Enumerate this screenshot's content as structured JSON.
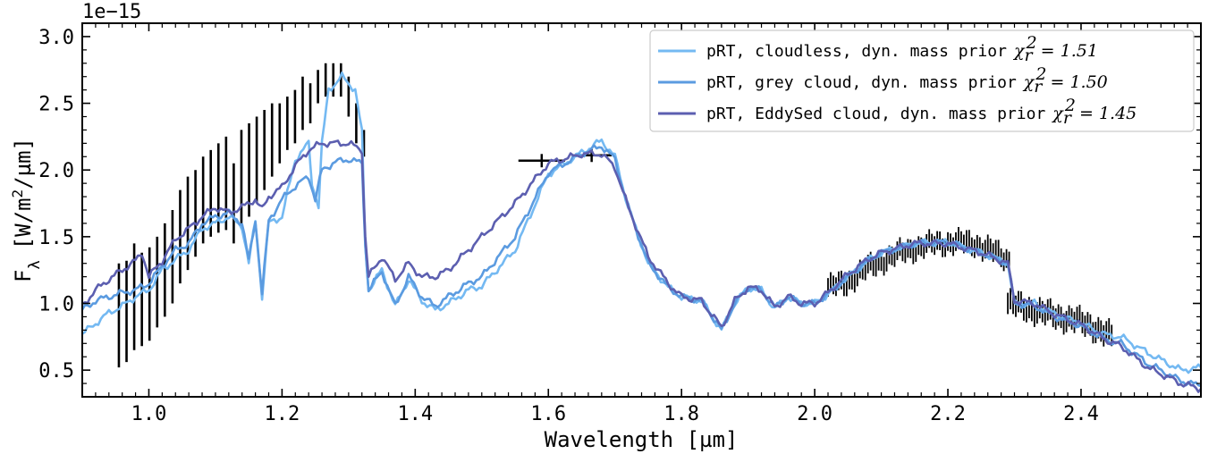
{
  "chart_data": {
    "type": "line",
    "title": "",
    "offset_text": "1e−15",
    "xlabel": "Wavelength [µm]",
    "ylabel_main": "F",
    "ylabel_sub": "λ",
    "ylabel_unit_a": "[W/m",
    "ylabel_sup": "2",
    "ylabel_unit_b": "/µm]",
    "xlim": [
      0.9,
      2.58
    ],
    "ylim": [
      0.3,
      3.1
    ],
    "xticks": [
      1.0,
      1.2,
      1.4,
      1.6,
      1.8,
      2.0,
      2.2,
      2.4
    ],
    "xtick_labels": [
      "1.0",
      "1.2",
      "1.4",
      "1.6",
      "1.8",
      "2.0",
      "2.2",
      "2.4"
    ],
    "yticks": [
      0.5,
      1.0,
      1.5,
      2.0,
      2.5,
      3.0
    ],
    "ytick_labels": [
      "0.5",
      "1.0",
      "1.5",
      "2.0",
      "2.5",
      "3.0"
    ],
    "grid": false,
    "legend_position": "top-right",
    "series": [
      {
        "name": "pRT, cloudless, dyn. mass prior",
        "chi_label": "χ",
        "chi_sub": "r",
        "chi_sup": "2",
        "chi_value": "= 1.51",
        "color": "#74b9f2",
        "points": [
          [
            0.9,
            0.77
          ],
          [
            0.92,
            0.85
          ],
          [
            0.94,
            0.93
          ],
          [
            0.96,
            0.98
          ],
          [
            0.98,
            1.05
          ],
          [
            1.0,
            1.1
          ],
          [
            1.02,
            1.25
          ],
          [
            1.04,
            1.33
          ],
          [
            1.06,
            1.4
          ],
          [
            1.08,
            1.56
          ],
          [
            1.1,
            1.6
          ],
          [
            1.12,
            1.65
          ],
          [
            1.14,
            1.58
          ],
          [
            1.15,
            1.3
          ],
          [
            1.16,
            1.62
          ],
          [
            1.17,
            1.05
          ],
          [
            1.18,
            1.6
          ],
          [
            1.2,
            1.65
          ],
          [
            1.22,
            2.08
          ],
          [
            1.24,
            2.2
          ],
          [
            1.245,
            1.9
          ],
          [
            1.255,
            1.73
          ],
          [
            1.26,
            2.2
          ],
          [
            1.27,
            2.6
          ],
          [
            1.29,
            2.7
          ],
          [
            1.31,
            2.6
          ],
          [
            1.32,
            2.28
          ],
          [
            1.325,
            1.45
          ],
          [
            1.33,
            1.1
          ],
          [
            1.35,
            1.25
          ],
          [
            1.37,
            0.98
          ],
          [
            1.39,
            1.18
          ],
          [
            1.41,
            1.02
          ],
          [
            1.43,
            0.95
          ],
          [
            1.45,
            1.0
          ],
          [
            1.48,
            1.1
          ],
          [
            1.5,
            1.13
          ],
          [
            1.55,
            1.4
          ],
          [
            1.6,
            1.97
          ],
          [
            1.65,
            2.13
          ],
          [
            1.68,
            2.22
          ],
          [
            1.7,
            2.1
          ],
          [
            1.72,
            1.72
          ],
          [
            1.75,
            1.3
          ],
          [
            1.78,
            1.12
          ],
          [
            1.8,
            1.05
          ],
          [
            1.83,
            1.02
          ],
          [
            1.86,
            0.8
          ],
          [
            1.88,
            1.0
          ],
          [
            1.9,
            1.12
          ],
          [
            1.92,
            1.1
          ],
          [
            1.94,
            0.96
          ],
          [
            1.96,
            1.05
          ],
          [
            1.98,
            1.0
          ],
          [
            2.0,
            1.0
          ],
          [
            2.02,
            1.07
          ],
          [
            2.05,
            1.2
          ],
          [
            2.08,
            1.32
          ],
          [
            2.1,
            1.38
          ],
          [
            2.15,
            1.45
          ],
          [
            2.2,
            1.46
          ],
          [
            2.25,
            1.38
          ],
          [
            2.29,
            1.3
          ],
          [
            2.3,
            1.0
          ],
          [
            2.33,
            1.0
          ],
          [
            2.36,
            0.92
          ],
          [
            2.4,
            0.85
          ],
          [
            2.44,
            0.76
          ],
          [
            2.46,
            0.75
          ],
          [
            2.5,
            0.63
          ],
          [
            2.55,
            0.5
          ],
          [
            2.58,
            0.52
          ]
        ]
      },
      {
        "name": "pRT, grey cloud, dyn. mass prior",
        "chi_label": "χ",
        "chi_sub": "r",
        "chi_sup": "2",
        "chi_value": "= 1.50",
        "color": "#5b9be0",
        "points": [
          [
            0.9,
            0.95
          ],
          [
            0.92,
            1.02
          ],
          [
            0.94,
            1.05
          ],
          [
            0.96,
            1.08
          ],
          [
            0.98,
            1.1
          ],
          [
            1.0,
            1.15
          ],
          [
            1.02,
            1.28
          ],
          [
            1.04,
            1.4
          ],
          [
            1.06,
            1.45
          ],
          [
            1.08,
            1.6
          ],
          [
            1.1,
            1.65
          ],
          [
            1.12,
            1.68
          ],
          [
            1.14,
            1.6
          ],
          [
            1.15,
            1.32
          ],
          [
            1.16,
            1.63
          ],
          [
            1.17,
            1.07
          ],
          [
            1.18,
            1.62
          ],
          [
            1.2,
            1.78
          ],
          [
            1.22,
            1.88
          ],
          [
            1.24,
            1.95
          ],
          [
            1.25,
            1.78
          ],
          [
            1.26,
            2.0
          ],
          [
            1.28,
            2.06
          ],
          [
            1.3,
            2.08
          ],
          [
            1.32,
            2.05
          ],
          [
            1.325,
            1.45
          ],
          [
            1.33,
            1.1
          ],
          [
            1.35,
            1.24
          ],
          [
            1.37,
            0.98
          ],
          [
            1.39,
            1.2
          ],
          [
            1.41,
            1.05
          ],
          [
            1.43,
            0.98
          ],
          [
            1.45,
            1.05
          ],
          [
            1.48,
            1.15
          ],
          [
            1.5,
            1.2
          ],
          [
            1.55,
            1.5
          ],
          [
            1.6,
            1.98
          ],
          [
            1.65,
            2.12
          ],
          [
            1.68,
            2.18
          ],
          [
            1.7,
            2.08
          ],
          [
            1.72,
            1.72
          ],
          [
            1.75,
            1.3
          ],
          [
            1.78,
            1.12
          ],
          [
            1.8,
            1.05
          ],
          [
            1.83,
            1.02
          ],
          [
            1.86,
            0.8
          ],
          [
            1.88,
            1.0
          ],
          [
            1.9,
            1.12
          ],
          [
            1.92,
            1.1
          ],
          [
            1.94,
            0.97
          ],
          [
            1.96,
            1.05
          ],
          [
            1.98,
            1.0
          ],
          [
            2.0,
            1.0
          ],
          [
            2.02,
            1.07
          ],
          [
            2.05,
            1.2
          ],
          [
            2.08,
            1.32
          ],
          [
            2.1,
            1.38
          ],
          [
            2.15,
            1.45
          ],
          [
            2.2,
            1.46
          ],
          [
            2.25,
            1.38
          ],
          [
            2.29,
            1.3
          ],
          [
            2.3,
            1.0
          ],
          [
            2.33,
            0.98
          ],
          [
            2.36,
            0.9
          ],
          [
            2.4,
            0.83
          ],
          [
            2.44,
            0.72
          ],
          [
            2.46,
            0.7
          ],
          [
            2.5,
            0.55
          ],
          [
            2.55,
            0.42
          ],
          [
            2.58,
            0.38
          ]
        ]
      },
      {
        "name": "pRT, EddySed cloud, dyn. mass prior",
        "chi_label": "χ",
        "chi_sub": "r",
        "chi_sup": "2",
        "chi_value": "= 1.45",
        "color": "#5c5fb0",
        "points": [
          [
            0.9,
            0.98
          ],
          [
            0.92,
            1.1
          ],
          [
            0.94,
            1.18
          ],
          [
            0.96,
            1.25
          ],
          [
            0.98,
            1.32
          ],
          [
            0.99,
            1.38
          ],
          [
            1.0,
            1.2
          ],
          [
            1.02,
            1.32
          ],
          [
            1.04,
            1.48
          ],
          [
            1.06,
            1.56
          ],
          [
            1.08,
            1.65
          ],
          [
            1.1,
            1.72
          ],
          [
            1.12,
            1.68
          ],
          [
            1.14,
            1.72
          ],
          [
            1.16,
            1.78
          ],
          [
            1.17,
            1.7
          ],
          [
            1.18,
            1.8
          ],
          [
            1.2,
            1.87
          ],
          [
            1.22,
            2.03
          ],
          [
            1.24,
            2.15
          ],
          [
            1.26,
            2.2
          ],
          [
            1.3,
            2.2
          ],
          [
            1.32,
            2.15
          ],
          [
            1.325,
            1.5
          ],
          [
            1.33,
            1.2
          ],
          [
            1.35,
            1.35
          ],
          [
            1.37,
            1.18
          ],
          [
            1.39,
            1.3
          ],
          [
            1.41,
            1.2
          ],
          [
            1.43,
            1.2
          ],
          [
            1.45,
            1.25
          ],
          [
            1.48,
            1.4
          ],
          [
            1.5,
            1.5
          ],
          [
            1.55,
            1.75
          ],
          [
            1.6,
            2.05
          ],
          [
            1.65,
            2.12
          ],
          [
            1.68,
            2.12
          ],
          [
            1.7,
            2.02
          ],
          [
            1.72,
            1.72
          ],
          [
            1.75,
            1.35
          ],
          [
            1.78,
            1.15
          ],
          [
            1.8,
            1.05
          ],
          [
            1.83,
            1.02
          ],
          [
            1.86,
            0.82
          ],
          [
            1.88,
            1.02
          ],
          [
            1.9,
            1.12
          ],
          [
            1.92,
            1.1
          ],
          [
            1.94,
            0.97
          ],
          [
            1.96,
            1.05
          ],
          [
            1.98,
            1.0
          ],
          [
            2.0,
            1.0
          ],
          [
            2.02,
            1.08
          ],
          [
            2.05,
            1.22
          ],
          [
            2.08,
            1.33
          ],
          [
            2.1,
            1.38
          ],
          [
            2.15,
            1.45
          ],
          [
            2.2,
            1.45
          ],
          [
            2.25,
            1.38
          ],
          [
            2.29,
            1.3
          ],
          [
            2.3,
            1.02
          ],
          [
            2.33,
            1.0
          ],
          [
            2.36,
            0.92
          ],
          [
            2.4,
            0.84
          ],
          [
            2.44,
            0.72
          ],
          [
            2.46,
            0.68
          ],
          [
            2.5,
            0.52
          ],
          [
            2.55,
            0.4
          ],
          [
            2.58,
            0.36
          ]
        ]
      }
    ],
    "observed_data": {
      "color": "#000000",
      "segments": [
        {
          "x_start": 0.955,
          "x_end": 1.325,
          "step": 0.0115,
          "y_low": [
            0.52,
            0.56,
            0.65,
            0.68,
            0.72,
            0.82,
            0.9,
            1.0,
            1.15,
            1.25,
            1.35,
            1.45,
            1.5,
            1.53,
            1.55,
            1.45,
            1.6,
            1.65,
            1.75,
            1.85,
            1.95,
            2.05,
            2.15,
            2.2,
            2.3,
            2.35,
            2.5,
            2.55,
            2.55,
            2.55,
            2.4,
            2.2,
            2.1
          ],
          "y_high": [
            1.3,
            1.32,
            1.45,
            1.38,
            1.42,
            1.5,
            1.6,
            1.7,
            1.85,
            1.95,
            2.0,
            2.1,
            2.15,
            2.2,
            2.25,
            2.05,
            2.3,
            2.35,
            2.4,
            2.45,
            2.5,
            2.5,
            2.55,
            2.6,
            2.7,
            2.65,
            2.75,
            2.8,
            2.8,
            2.8,
            2.7,
            2.5,
            2.3
          ]
        },
        {
          "x_start": 2.02,
          "x_end": 2.29,
          "step": 0.004,
          "y_center": [
            1.12,
            1.15,
            1.25,
            1.32,
            1.38,
            1.42,
            1.45,
            1.46,
            1.45,
            1.4,
            1.32
          ],
          "y_err": 0.07
        },
        {
          "x_start": 2.29,
          "x_end": 2.445,
          "step": 0.004,
          "y_center": [
            1.0,
            0.97,
            0.93,
            0.9,
            0.87,
            0.82,
            0.75
          ],
          "y_err": 0.08
        }
      ],
      "photometry": [
        {
          "x": 1.59,
          "y": 2.07,
          "xerr": 0.035,
          "yerr": 0.05
        },
        {
          "x": 1.665,
          "y": 2.11,
          "xerr": 0.03,
          "yerr": 0.05
        }
      ]
    }
  }
}
